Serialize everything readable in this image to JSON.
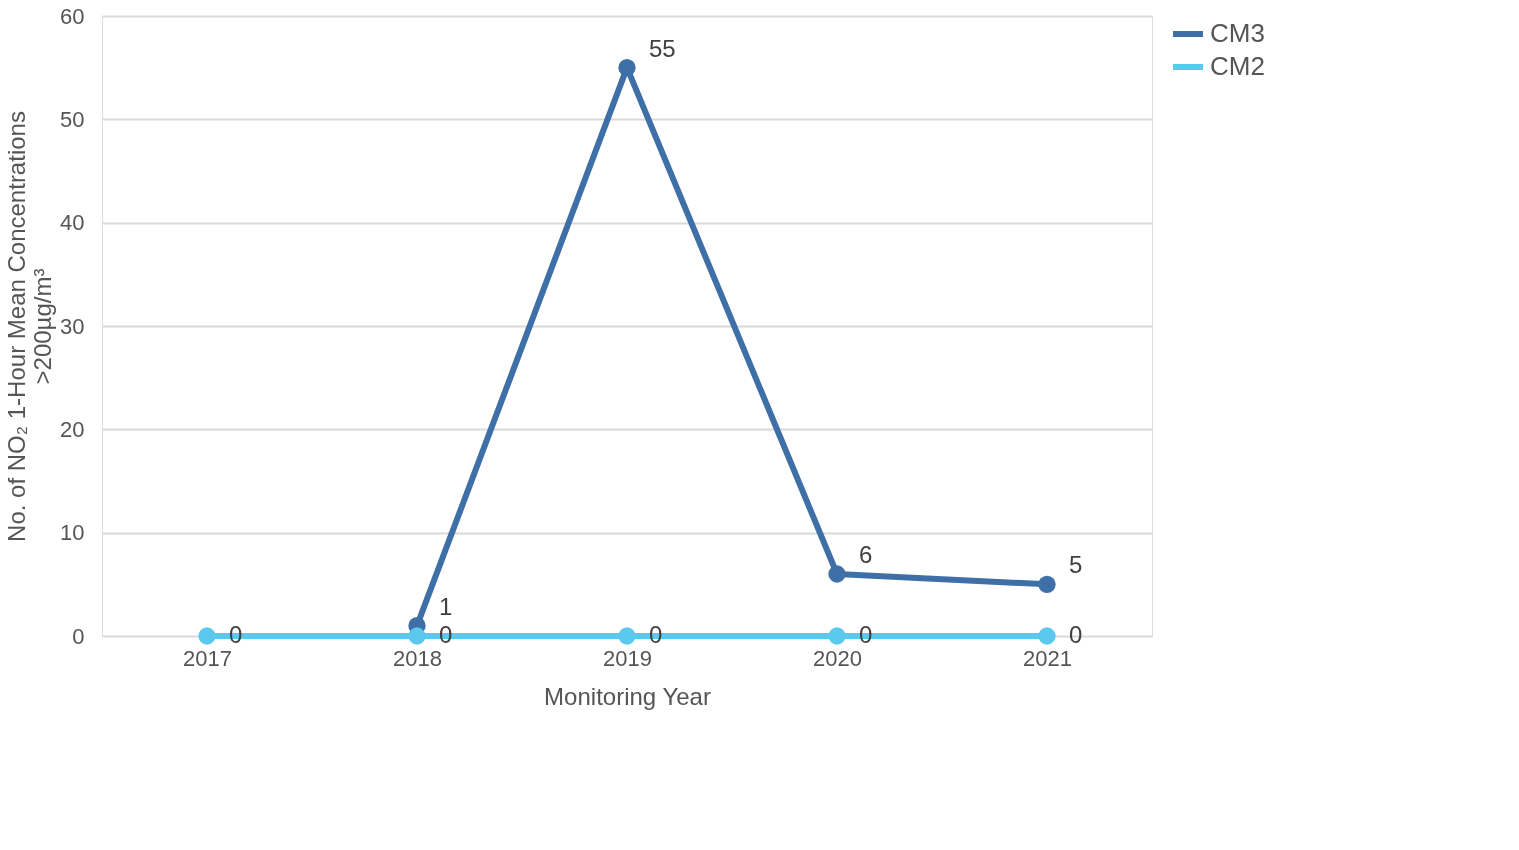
{
  "chart_data": {
    "type": "line",
    "categories": [
      "2017",
      "2018",
      "2019",
      "2020",
      "2021"
    ],
    "series": [
      {
        "name": "CM3",
        "color": "#3e6fa6",
        "values": [
          null,
          1,
          55,
          6,
          5
        ]
      },
      {
        "name": "CM2",
        "color": "#5bc8ee",
        "values": [
          0,
          0,
          0,
          0,
          0
        ]
      }
    ],
    "xlabel": "Monitoring Year",
    "ylabel": "No. of  NO₂ 1-Hour Mean Concentrations\n>200µg/m³",
    "ylim": [
      0,
      60
    ],
    "yticks": [
      0,
      10,
      20,
      30,
      40,
      50,
      60
    ],
    "grid": "y",
    "legend": "right",
    "marker": "circle",
    "line_style": "solid",
    "data_labels": true
  }
}
